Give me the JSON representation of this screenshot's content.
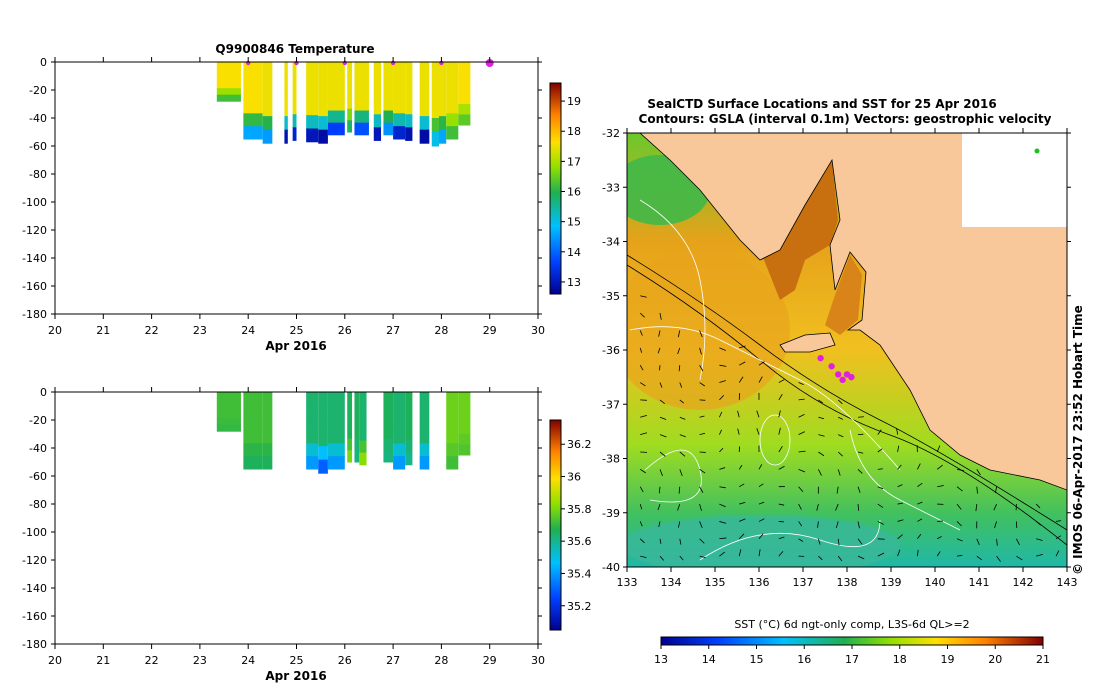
{
  "chart_data": [
    {
      "type": "heatmap",
      "title": "Q9900846  Temperature",
      "xlabel": "Apr 2016",
      "ylabel": "",
      "xlim": [
        20,
        30
      ],
      "ylim": [
        -180,
        0
      ],
      "x_ticks": [
        "20",
        "21",
        "22",
        "23",
        "24",
        "25",
        "26",
        "27",
        "28",
        "29",
        "30"
      ],
      "y_ticks": [
        "0",
        "-20",
        "-40",
        "-60",
        "-80",
        "-100",
        "-120",
        "-140",
        "-160",
        "-180"
      ],
      "colorbar": {
        "min": 12.6,
        "max": 19.6,
        "ticks": [
          "13",
          "14",
          "15",
          "16",
          "17",
          "18",
          "19"
        ]
      },
      "profiles": [
        {
          "x0": 23.35,
          "x1": 23.85,
          "depth": -28,
          "top": 17.6,
          "bottom": 16.2
        },
        {
          "x0": 23.9,
          "x1": 24.3,
          "depth": -55,
          "top": 17.6,
          "bottom": 14.6
        },
        {
          "x0": 24.3,
          "x1": 24.5,
          "depth": -58,
          "top": 17.5,
          "bottom": 14.5
        },
        {
          "x0": 24.75,
          "x1": 24.82,
          "depth": -58,
          "top": 17.5,
          "bottom": 12.9
        },
        {
          "x0": 24.92,
          "x1": 25.0,
          "depth": -56,
          "top": 17.5,
          "bottom": 13.2
        },
        {
          "x0": 25.2,
          "x1": 25.45,
          "depth": -57,
          "top": 17.5,
          "bottom": 13.0
        },
        {
          "x0": 25.45,
          "x1": 25.65,
          "depth": -58,
          "top": 17.5,
          "bottom": 12.8
        },
        {
          "x0": 25.65,
          "x1": 26.0,
          "depth": -52,
          "top": 17.5,
          "bottom": 13.6
        },
        {
          "x0": 26.05,
          "x1": 26.15,
          "depth": -50,
          "top": 17.5,
          "bottom": 15.8
        },
        {
          "x0": 26.2,
          "x1": 26.5,
          "depth": -52,
          "top": 17.5,
          "bottom": 13.8
        },
        {
          "x0": 26.6,
          "x1": 26.75,
          "depth": -56,
          "top": 17.5,
          "bottom": 13.0
        },
        {
          "x0": 26.8,
          "x1": 27.0,
          "depth": -52,
          "top": 17.5,
          "bottom": 14.4
        },
        {
          "x0": 27.0,
          "x1": 27.25,
          "depth": -55,
          "top": 17.5,
          "bottom": 13.2
        },
        {
          "x0": 27.25,
          "x1": 27.4,
          "depth": -56,
          "top": 17.5,
          "bottom": 12.9
        },
        {
          "x0": 27.55,
          "x1": 27.75,
          "depth": -58,
          "top": 17.5,
          "bottom": 12.8
        },
        {
          "x0": 27.8,
          "x1": 27.95,
          "depth": -60,
          "top": 17.5,
          "bottom": 15.0
        },
        {
          "x0": 27.95,
          "x1": 28.1,
          "depth": -58,
          "top": 17.5,
          "bottom": 14.6
        },
        {
          "x0": 28.1,
          "x1": 28.35,
          "depth": -55,
          "top": 17.5,
          "bottom": 16.2
        },
        {
          "x0": 28.35,
          "x1": 28.6,
          "depth": -45,
          "top": 17.6,
          "bottom": 16.4
        }
      ],
      "markers_x": [
        24.0,
        25.0,
        26.0,
        27.0,
        28.0,
        29.0
      ]
    },
    {
      "type": "heatmap",
      "title": "",
      "xlabel": "Apr 2016",
      "ylabel": "",
      "xlim": [
        20,
        30
      ],
      "ylim": [
        -180,
        0
      ],
      "x_ticks": [
        "20",
        "21",
        "22",
        "23",
        "24",
        "25",
        "26",
        "27",
        "28",
        "29",
        "30"
      ],
      "y_ticks": [
        "0",
        "-20",
        "-40",
        "-60",
        "-80",
        "-100",
        "-120",
        "-140",
        "-160",
        "-180"
      ],
      "colorbar": {
        "min": 35.05,
        "max": 36.35,
        "ticks": [
          "35.2",
          "35.4",
          "35.6",
          "35.8",
          "36",
          "36.2"
        ]
      },
      "profiles": [
        {
          "x0": 23.35,
          "x1": 23.85,
          "depth": -28,
          "top": 35.72,
          "bottom": 35.7
        },
        {
          "x0": 23.9,
          "x1": 24.3,
          "depth": -55,
          "top": 35.72,
          "bottom": 35.66
        },
        {
          "x0": 24.3,
          "x1": 24.5,
          "depth": -55,
          "top": 35.72,
          "bottom": 35.66
        },
        {
          "x0": 25.2,
          "x1": 25.45,
          "depth": -55,
          "top": 35.64,
          "bottom": 35.4
        },
        {
          "x0": 25.45,
          "x1": 25.65,
          "depth": -58,
          "top": 35.64,
          "bottom": 35.3
        },
        {
          "x0": 25.65,
          "x1": 26.0,
          "depth": -55,
          "top": 35.64,
          "bottom": 35.4
        },
        {
          "x0": 26.05,
          "x1": 26.15,
          "depth": -50,
          "top": 35.66,
          "bottom": 35.8
        },
        {
          "x0": 26.2,
          "x1": 26.3,
          "depth": -50,
          "top": 35.66,
          "bottom": 35.62
        },
        {
          "x0": 26.3,
          "x1": 26.45,
          "depth": -52,
          "top": 35.64,
          "bottom": 35.82
        },
        {
          "x0": 26.8,
          "x1": 27.0,
          "depth": -50,
          "top": 35.66,
          "bottom": 35.62
        },
        {
          "x0": 27.0,
          "x1": 27.25,
          "depth": -55,
          "top": 35.64,
          "bottom": 35.4
        },
        {
          "x0": 27.25,
          "x1": 27.4,
          "depth": -52,
          "top": 35.66,
          "bottom": 35.6
        },
        {
          "x0": 27.55,
          "x1": 27.75,
          "depth": -55,
          "top": 35.64,
          "bottom": 35.4
        },
        {
          "x0": 28.1,
          "x1": 28.35,
          "depth": -55,
          "top": 35.78,
          "bottom": 35.72
        },
        {
          "x0": 28.35,
          "x1": 28.6,
          "depth": -45,
          "top": 35.78,
          "bottom": 35.74
        }
      ]
    },
    {
      "type": "heatmap",
      "title": "SealCTD Surface Locations and SST for 25 Apr 2016",
      "subtitle": "Contours: GSLA (interval 0.1m)  Vectors: geostrophic velocity",
      "xlim": [
        133,
        143
      ],
      "ylim": [
        -40,
        -32
      ],
      "x_ticks": [
        "133",
        "134",
        "135",
        "136",
        "137",
        "138",
        "139",
        "140",
        "141",
        "142",
        "143"
      ],
      "y_ticks": [
        "-32",
        "-33",
        "-34",
        "-35",
        "-36",
        "-37",
        "-38",
        "-39",
        "-40"
      ],
      "colorbar": {
        "label": "SST (°C) 6d ngt-only comp, L3S-6d QL>=2",
        "min": 13,
        "max": 21,
        "ticks": [
          "13",
          "14",
          "15",
          "16",
          "17",
          "18",
          "19",
          "20",
          "21"
        ]
      },
      "seal_locations": [
        [
          137.4,
          -36.15
        ],
        [
          137.65,
          -36.3
        ],
        [
          137.8,
          -36.45
        ],
        [
          138.0,
          -36.45
        ],
        [
          137.9,
          -36.55
        ],
        [
          138.1,
          -36.5
        ]
      ],
      "side_label": "© IMOS 06-Apr-2017 23:52 Hobart Time"
    }
  ]
}
